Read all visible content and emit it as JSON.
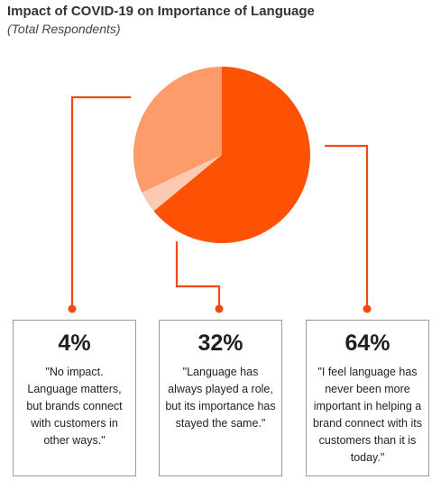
{
  "title": "Impact of COVID-19 on Importance of Language",
  "subtitle": "(Total Respondents)",
  "chart_data": {
    "type": "pie",
    "title": "Impact of COVID-19 on Importance of Language",
    "subtitle": "(Total Respondents)",
    "slices": [
      {
        "label": "4%",
        "value": 4,
        "color": "#fccab2",
        "description": "\"No impact. Language matters, but brands connect with customers in other ways.\""
      },
      {
        "label": "32%",
        "value": 32,
        "color": "#fe9b6a",
        "description": "\"Language has always played a role, but its importance has stayed the same.\""
      },
      {
        "label": "64%",
        "value": 64,
        "color": "#fd5103",
        "description": "\"I feel language has never been more important in helping a brand connect with its customers than it is today.\""
      }
    ],
    "connector_color": "#f04a12",
    "legend": "callout boxes below chart"
  },
  "cards": [
    {
      "pct": "4%",
      "quote": "\"No impact. Language matters, but brands connect with customers in other ways.\""
    },
    {
      "pct": "32%",
      "quote": "\"Language has always played a role, but its importance has stayed the same.\""
    },
    {
      "pct": "64%",
      "quote": "\"I feel language has never been more important in helping a brand connect with its customers than it is today.\""
    }
  ]
}
